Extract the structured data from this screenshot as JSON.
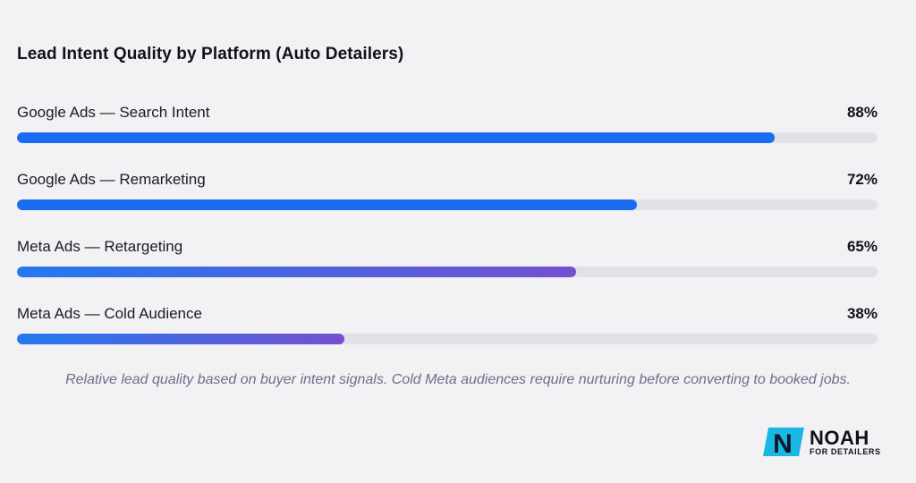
{
  "chart_data": {
    "type": "bar",
    "orientation": "horizontal",
    "title": "Lead Intent Quality by Platform (Auto Detailers)",
    "categories": [
      "Google Ads — Search Intent",
      "Google Ads — Remarketing",
      "Meta Ads — Retargeting",
      "Meta Ads — Cold Audience"
    ],
    "values": [
      88,
      72,
      65,
      38
    ],
    "value_labels": [
      "88%",
      "72%",
      "65%",
      "38%"
    ],
    "xlim": [
      0,
      100
    ],
    "grid": false,
    "legend": "none",
    "colors": {
      "google": "#1a6cf0",
      "meta_start": "#2379ef",
      "meta_end": "#7450d0",
      "track": "#e1e1e8"
    },
    "bar_styles": [
      "google",
      "google",
      "meta",
      "meta"
    ],
    "caption": "Relative lead quality based on buyer intent signals. Cold Meta audiences require nurturing before converting to booked jobs."
  },
  "branding": {
    "logo_letter": "N",
    "name": "NOAH",
    "tagline": "FOR DETAILERS",
    "accent": "#19b7e6"
  }
}
